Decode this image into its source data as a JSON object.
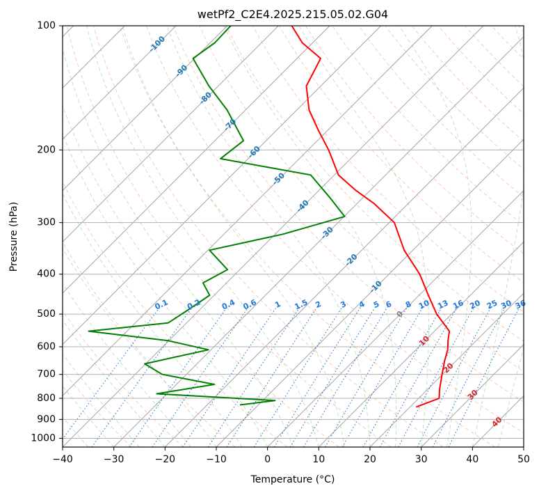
{
  "chart_data": {
    "type": "skew-t",
    "title": "wetPf2_C2E4.2025.215.05.02.G04",
    "xlabel": "Temperature (°C)",
    "ylabel": "Pressure (hPa)",
    "xlim": [
      -40,
      50
    ],
    "ylim": [
      1050,
      100
    ],
    "y_scale": "log",
    "grid": true,
    "x_ticks": [
      "−40",
      "−30",
      "−20",
      "−10",
      "0",
      "10",
      "20",
      "30",
      "40",
      "50"
    ],
    "y_ticks": [
      "100",
      "200",
      "300",
      "400",
      "500",
      "600",
      "700",
      "800",
      "900",
      "1000"
    ],
    "skewed_isotherm_labels": [
      "-100",
      "-90",
      "-80",
      "-70",
      "-60",
      "-50",
      "-40",
      "-30",
      "-20",
      "-10",
      "0",
      "10",
      "20",
      "30",
      "40"
    ],
    "mixing_ratio_labels": [
      "0.1",
      "0.2",
      "0.4",
      "0.6",
      "1",
      "1.5",
      "2",
      "3",
      "4",
      "5",
      "6",
      "8",
      "10",
      "13",
      "16",
      "20",
      "25",
      "30",
      "36"
    ],
    "series": [
      {
        "color": "#ff0000",
        "points": [
          {
            "p": 840,
            "t": 21.2
          },
          {
            "p": 800,
            "t": 24.0
          },
          {
            "p": 760,
            "t": 22.3
          },
          {
            "p": 700,
            "t": 19.9
          },
          {
            "p": 650,
            "t": 17.8
          },
          {
            "p": 610,
            "t": 16.2
          },
          {
            "p": 580,
            "t": 14.5
          },
          {
            "p": 550,
            "t": 12.9
          },
          {
            "p": 500,
            "t": 7.1
          },
          {
            "p": 450,
            "t": 1.8
          },
          {
            "p": 400,
            "t": -4.0
          },
          {
            "p": 350,
            "t": -11.7
          },
          {
            "p": 300,
            "t": -19.0
          },
          {
            "p": 270,
            "t": -26.6
          },
          {
            "p": 250,
            "t": -33.0
          },
          {
            "p": 230,
            "t": -39.2
          },
          {
            "p": 200,
            "t": -46.0
          },
          {
            "p": 180,
            "t": -51.6
          },
          {
            "p": 160,
            "t": -57.6
          },
          {
            "p": 140,
            "t": -62.8
          },
          {
            "p": 120,
            "t": -65.4
          },
          {
            "p": 110,
            "t": -72.0
          },
          {
            "p": 100,
            "t": -77.4
          }
        ]
      },
      {
        "color": "#008000",
        "points": [
          {
            "p": 830,
            "t": -13.6
          },
          {
            "p": 810,
            "t": -7.6
          },
          {
            "p": 780,
            "t": -32.0
          },
          {
            "p": 740,
            "t": -22.6
          },
          {
            "p": 700,
            "t": -34.7
          },
          {
            "p": 660,
            "t": -40.2
          },
          {
            "p": 610,
            "t": -30.5
          },
          {
            "p": 580,
            "t": -40.1
          },
          {
            "p": 550,
            "t": -57.5
          },
          {
            "p": 525,
            "t": -43.6
          },
          {
            "p": 490,
            "t": -42.3
          },
          {
            "p": 450,
            "t": -40.9
          },
          {
            "p": 420,
            "t": -44.6
          },
          {
            "p": 390,
            "t": -42.4
          },
          {
            "p": 350,
            "t": -49.7
          },
          {
            "p": 320,
            "t": -38.5
          },
          {
            "p": 290,
            "t": -29.9
          },
          {
            "p": 260,
            "t": -36.7
          },
          {
            "p": 230,
            "t": -44.6
          },
          {
            "p": 210,
            "t": -65.4
          },
          {
            "p": 190,
            "t": -64.4
          },
          {
            "p": 160,
            "t": -73.6
          },
          {
            "p": 140,
            "t": -81.8
          },
          {
            "p": 120,
            "t": -90.3
          },
          {
            "p": 110,
            "t": -89.1
          },
          {
            "p": 100,
            "t": -89.3
          }
        ]
      }
    ]
  }
}
